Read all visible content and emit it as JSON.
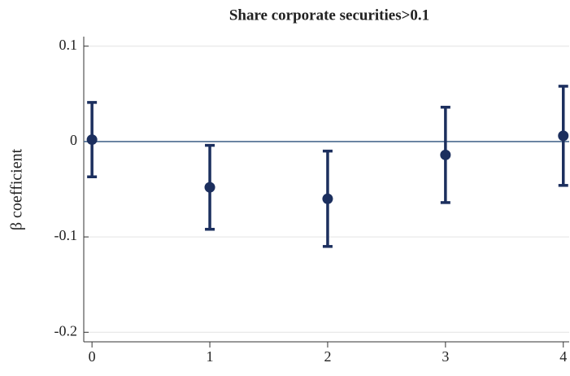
{
  "chart_data": {
    "type": "errorbar",
    "title": "Share corporate securities>0.1",
    "y_label": "β coefficient",
    "x": [
      0,
      1,
      2,
      3,
      4
    ],
    "series": [
      {
        "color": "#1c2f5e",
        "values": [
          0.002,
          -0.048,
          -0.06,
          -0.014,
          0.006
        ],
        "errors": [
          0.039,
          0.044,
          0.05,
          0.05,
          0.052
        ]
      }
    ],
    "xlim": [
      -0.07,
      4.05
    ],
    "xticks": [
      0,
      1,
      2,
      3,
      4
    ],
    "ylim": [
      -0.21,
      0.11
    ],
    "yticks": [
      {
        "value": -0.2,
        "label": "-0.2"
      },
      {
        "value": -0.1,
        "label": "-0.1"
      },
      0,
      0.1
    ],
    "reference_line": 0,
    "reference_color": "#4a6a8f",
    "grid": true
  }
}
